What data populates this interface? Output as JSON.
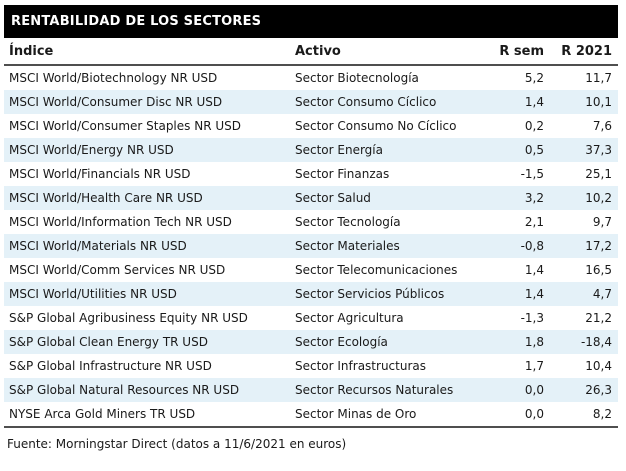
{
  "title": "RENTABILIDAD DE LOS SECTORES",
  "colors": {
    "title_bar_bg": "#000000",
    "title_bar_text": "#ffffff",
    "row_stripe": "#e4f1f8",
    "rule": "#4f4f4f",
    "text": "#1a1a1a"
  },
  "footer": {
    "source": "Fuente: Morningstar Direct (datos a 11/6/2021 en euros)"
  },
  "chart_data": {
    "type": "table",
    "title": "RENTABILIDAD DE LOS SECTORES",
    "columns": [
      "Índice",
      "Activo",
      "R sem",
      "R 2021"
    ],
    "rows": [
      [
        "MSCI World/Biotechnology NR USD",
        "Sector Biotecnología",
        "5,2",
        "11,7"
      ],
      [
        "MSCI World/Consumer Disc NR USD",
        "Sector Consumo Cíclico",
        "1,4",
        "10,1"
      ],
      [
        "MSCI World/Consumer Staples NR USD",
        "Sector Consumo No Cíclico",
        "0,2",
        "7,6"
      ],
      [
        "MSCI World/Energy NR USD",
        "Sector Energía",
        "0,5",
        "37,3"
      ],
      [
        "MSCI World/Financials NR USD",
        "Sector Finanzas",
        "-1,5",
        "25,1"
      ],
      [
        "MSCI World/Health Care NR USD",
        "Sector Salud",
        "3,2",
        "10,2"
      ],
      [
        "MSCI World/Information Tech NR USD",
        "Sector Tecnología",
        "2,1",
        "9,7"
      ],
      [
        "MSCI World/Materials NR USD",
        "Sector Materiales",
        "-0,8",
        "17,2"
      ],
      [
        "MSCI World/Comm Services NR USD",
        "Sector Telecomunicaciones",
        "1,4",
        "16,5"
      ],
      [
        "MSCI World/Utilities NR USD",
        "Sector Servicios Públicos",
        "1,4",
        "4,7"
      ],
      [
        "S&P Global Agribusiness Equity NR USD",
        "Sector Agricultura",
        "-1,3",
        "21,2"
      ],
      [
        "S&P Global Clean Energy TR USD",
        "Sector Ecología",
        "1,8",
        "-18,4"
      ],
      [
        "S&P Global Infrastructure NR USD",
        "Sector Infrastructuras",
        "1,7",
        "10,4"
      ],
      [
        "S&P Global Natural Resources NR USD",
        "Sector Recursos Naturales",
        "0,0",
        "26,3"
      ],
      [
        "NYSE Arca Gold Miners TR USD",
        "Sector Minas de Oro",
        "0,0",
        "8,2"
      ]
    ],
    "source": "Fuente: Morningstar Direct (datos a 11/6/2021 en euros)",
    "notes": {
      "decimal_separator": "comma",
      "units": "percent, in euros",
      "as_of_date_shown": "11/6/2021"
    }
  }
}
